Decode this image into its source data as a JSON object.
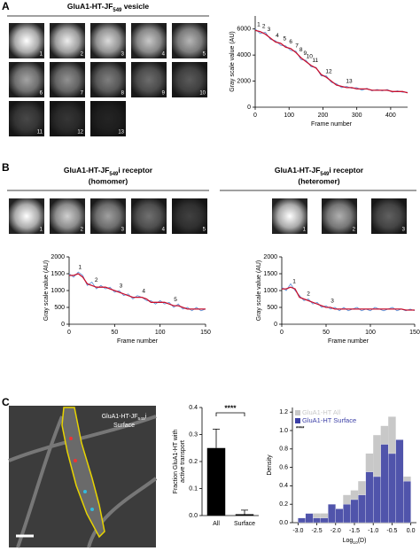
{
  "panels": [
    {
      "letter": "A",
      "title": [
        "GluA1-HT-JF",
        "549",
        " vesicle"
      ],
      "tiles": [
        "1",
        "2",
        "3",
        "4",
        "5",
        "6",
        "7",
        "8",
        "9",
        "10",
        "11",
        "12",
        "13"
      ]
    },
    {
      "letter": "B",
      "title": [
        "GluA1-HT-JF",
        "549",
        "i receptor"
      ],
      "subtitle": "(homomer)",
      "tiles": [
        "1",
        "2",
        "3",
        "4",
        "5"
      ]
    },
    {
      "title": [
        "GluA1-HT-JF",
        "549",
        "i receptor"
      ],
      "subtitle": "(heteromer)",
      "tiles": [
        "1",
        "2",
        "3"
      ]
    },
    {
      "letter": "C",
      "label": [
        "GluA1-HT-JF",
        "549",
        "i"
      ],
      "label2": "Surface"
    }
  ],
  "chart_data": [
    {
      "type": "line",
      "xlabel": "Frame number",
      "ylabel": "Gray scale value (AU)",
      "x": [
        0,
        15,
        30,
        45,
        60,
        75,
        90,
        105,
        120,
        135,
        150,
        165,
        180,
        195,
        210,
        225,
        240,
        255,
        270,
        285,
        300,
        315,
        330,
        345,
        360,
        375,
        390,
        405,
        420,
        435,
        450
      ],
      "series": [
        {
          "color": "#5b8fd6",
          "values": [
            6000,
            5650,
            5750,
            5200,
            5100,
            4750,
            4700,
            4350,
            4300,
            3650,
            3600,
            3100,
            3050,
            2400,
            2400,
            1900,
            1800,
            1500,
            1600,
            1450,
            1500,
            1300,
            1450,
            1250,
            1350,
            1250,
            1350,
            1150,
            1250,
            1150,
            1150
          ]
        },
        {
          "color": "#c8102e",
          "values": [
            5900,
            5800,
            5600,
            5300,
            5000,
            4900,
            4600,
            4500,
            4200,
            3800,
            3500,
            3200,
            3000,
            2500,
            2300,
            2000,
            1700,
            1600,
            1500,
            1500,
            1400,
            1400,
            1400,
            1300,
            1300,
            1300,
            1300,
            1200,
            1200,
            1200,
            1100
          ]
        }
      ],
      "annotations": [
        {
          "text": "1",
          "x": 5
        },
        {
          "text": "2",
          "x": 20
        },
        {
          "text": "3",
          "x": 35
        },
        {
          "text": "4",
          "x": 60
        },
        {
          "text": "5",
          "x": 82
        },
        {
          "text": "6",
          "x": 100
        },
        {
          "text": "7",
          "x": 118
        },
        {
          "text": "8",
          "x": 130
        },
        {
          "text": "9",
          "x": 142
        },
        {
          "text": "10",
          "x": 155
        },
        {
          "text": "11",
          "x": 172
        },
        {
          "text": "12",
          "x": 212
        },
        {
          "text": "13",
          "x": 272
        }
      ],
      "xlim": [
        0,
        450
      ],
      "ylim": [
        0,
        7000
      ],
      "xticks": [
        0,
        100,
        200,
        300,
        400
      ],
      "yticks": [
        0,
        2000,
        4000,
        6000
      ]
    },
    {
      "type": "line",
      "xlabel": "Frame number",
      "ylabel": "Gray scale value (AU)",
      "x": [
        0,
        5,
        10,
        15,
        20,
        25,
        30,
        35,
        40,
        45,
        50,
        55,
        60,
        65,
        70,
        75,
        80,
        85,
        90,
        95,
        100,
        105,
        110,
        115,
        120,
        125,
        130,
        135,
        140,
        145,
        150
      ],
      "series": [
        {
          "color": "#5b8fd6",
          "values": [
            1500,
            1400,
            1550,
            1450,
            1150,
            1250,
            1050,
            1150,
            1050,
            1100,
            950,
            1000,
            850,
            900,
            750,
            850,
            800,
            700,
            700,
            600,
            700,
            600,
            650,
            500,
            600,
            450,
            500,
            400,
            500,
            400,
            450
          ]
        },
        {
          "color": "#c8102e",
          "values": [
            1450,
            1450,
            1500,
            1400,
            1200,
            1150,
            1100,
            1100,
            1100,
            1050,
            1000,
            950,
            900,
            850,
            800,
            800,
            800,
            750,
            650,
            650,
            650,
            650,
            600,
            550,
            550,
            500,
            450,
            450,
            450,
            450,
            450
          ]
        }
      ],
      "annotations": [
        {
          "text": "1",
          "x": 10
        },
        {
          "text": "2",
          "x": 28
        },
        {
          "text": "3",
          "x": 55
        },
        {
          "text": "4",
          "x": 80
        },
        {
          "text": "5",
          "x": 115
        }
      ],
      "xlim": [
        0,
        150
      ],
      "ylim": [
        0,
        2000
      ],
      "xticks": [
        0,
        50,
        100,
        150
      ],
      "yticks": [
        0,
        500,
        1000,
        1500,
        2000
      ]
    },
    {
      "type": "line",
      "xlabel": "Frame number",
      "ylabel": "Gray scale value (AU)",
      "x": [
        0,
        5,
        10,
        15,
        20,
        25,
        30,
        35,
        40,
        45,
        50,
        55,
        60,
        65,
        70,
        75,
        80,
        85,
        90,
        95,
        100,
        105,
        110,
        115,
        120,
        125,
        130,
        135,
        140,
        145,
        150
      ],
      "series": [
        {
          "color": "#5b8fd6",
          "values": [
            1100,
            1000,
            1200,
            1000,
            850,
            700,
            750,
            600,
            650,
            500,
            550,
            450,
            500,
            400,
            500,
            400,
            450,
            500,
            400,
            450,
            400,
            500,
            450,
            400,
            450,
            500,
            400,
            450,
            400,
            450,
            400
          ]
        },
        {
          "color": "#c8102e",
          "values": [
            1050,
            1050,
            1100,
            1050,
            800,
            750,
            700,
            650,
            600,
            550,
            500,
            500,
            450,
            450,
            450,
            450,
            450,
            450,
            450,
            450,
            450,
            450,
            450,
            450,
            450,
            450,
            450,
            450,
            420,
            420,
            420
          ]
        }
      ],
      "annotations": [
        {
          "text": "1",
          "x": 12
        },
        {
          "text": "2",
          "x": 28
        },
        {
          "text": "3",
          "x": 55
        }
      ],
      "xlim": [
        0,
        150
      ],
      "ylim": [
        0,
        2000
      ],
      "xticks": [
        0,
        50,
        100,
        150
      ],
      "yticks": [
        0,
        500,
        1000,
        1500,
        2000
      ]
    },
    {
      "type": "bar",
      "ylabel": [
        "Fraction GluA1-HT with",
        "active transport"
      ],
      "categories": [
        "All",
        "Surface"
      ],
      "values": [
        0.25,
        0.005
      ],
      "errors": [
        0.07,
        0.015
      ],
      "color": "#000000",
      "significance": "****",
      "ylim": [
        0,
        0.4
      ],
      "yticks": [
        {
          "value": 0,
          "label": "0.0"
        },
        0.1,
        0.2,
        0.3,
        0.4
      ]
    },
    {
      "type": "histogram",
      "ylabel": "Density",
      "xlabel": [
        "Log",
        "10",
        "(D)"
      ],
      "stat": "****",
      "bins": [
        -3.0,
        -2.8,
        -2.6,
        -2.4,
        -2.2,
        -2.0,
        -1.8,
        -1.6,
        -1.4,
        -1.2,
        -1.0,
        -0.8,
        -0.6,
        -0.4,
        -0.2,
        0.0
      ],
      "series": [
        {
          "name": "GluA1-HT All",
          "color": "#c8c8c8",
          "values": [
            0.05,
            0.1,
            0.1,
            0.1,
            0.2,
            0.15,
            0.3,
            0.35,
            0.45,
            0.75,
            0.95,
            1.05,
            1.15,
            0.9,
            0.5
          ]
        },
        {
          "name": "GluA1-HT Surface",
          "color": "#3b3fa6",
          "values": [
            0.05,
            0.1,
            0.05,
            0.05,
            0.2,
            0.15,
            0.2,
            0.25,
            0.3,
            0.55,
            0.5,
            0.85,
            0.75,
            0.9,
            0.45
          ]
        }
      ],
      "xlim": [
        -3.15,
        0.15
      ],
      "ylim": [
        0,
        1.25
      ],
      "xticks": [
        {
          "value": -3,
          "label": "-3.0"
        },
        -2.5,
        {
          "value": -2,
          "label": "-2.0"
        },
        -1.5,
        {
          "value": -1,
          "label": "-1.0"
        },
        -0.5,
        {
          "value": 0,
          "label": "0.0"
        }
      ],
      "yticks": [
        {
          "value": 0,
          "label": "0.0"
        },
        0.2,
        0.4,
        0.6,
        0.8,
        {
          "value": 1,
          "label": "1.0"
        },
        1.2
      ]
    }
  ]
}
